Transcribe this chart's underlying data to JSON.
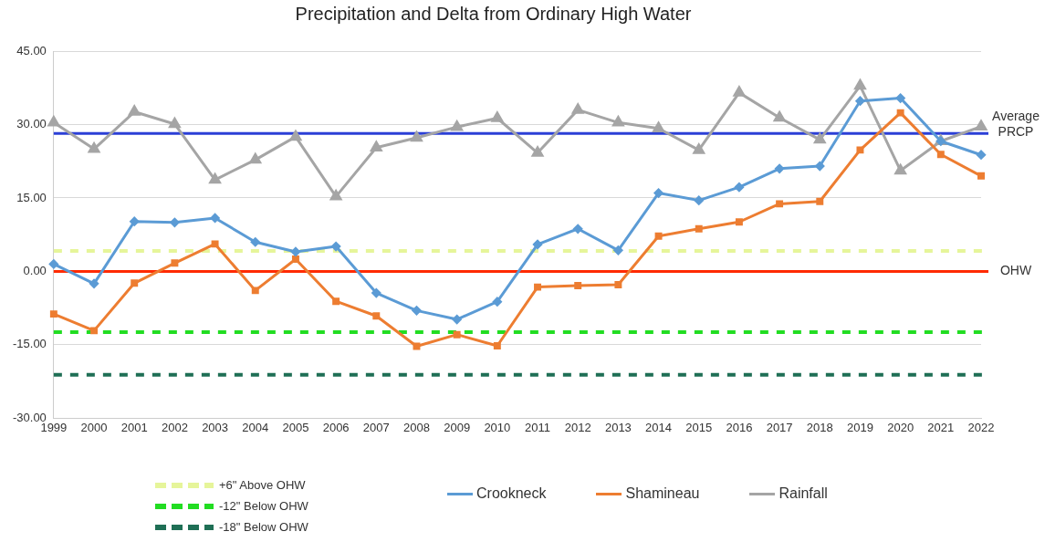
{
  "chart_data": {
    "type": "line",
    "title": "Precipitation and Delta from Ordinary High Water",
    "categories": [
      "1999",
      "2000",
      "2001",
      "2002",
      "2003",
      "2004",
      "2005",
      "2006",
      "2007",
      "2008",
      "2009",
      "2010",
      "2011",
      "2012",
      "2013",
      "2014",
      "2015",
      "2016",
      "2017",
      "2018",
      "2019",
      "2020",
      "2021",
      "2022"
    ],
    "series": [
      {
        "name": "Crookneck",
        "color": "#5b9bd5",
        "marker": "diamond",
        "values": [
          1.5,
          -2.5,
          10.2,
          10.0,
          10.9,
          6.0,
          4.0,
          5.1,
          -4.4,
          -8.0,
          -9.8,
          -6.2,
          5.5,
          8.7,
          4.3,
          16.0,
          14.5,
          17.2,
          21.0,
          21.5,
          34.8,
          35.4,
          26.6,
          23.8
        ]
      },
      {
        "name": "Shamineau",
        "color": "#ed7d31",
        "marker": "square",
        "values": [
          -8.7,
          -12.1,
          -2.4,
          1.7,
          5.6,
          -3.9,
          2.5,
          -6.1,
          -9.1,
          -15.3,
          -12.9,
          -15.2,
          -3.2,
          -2.9,
          -2.7,
          7.2,
          8.7,
          10.1,
          13.8,
          14.3,
          24.8,
          32.4,
          23.9,
          19.5
        ]
      },
      {
        "name": "Rainfall",
        "color": "#a5a5a5",
        "marker": "triangle",
        "values": [
          30.4,
          25.0,
          32.6,
          30.1,
          18.7,
          22.8,
          27.5,
          15.3,
          25.3,
          27.3,
          29.5,
          31.3,
          24.2,
          33.0,
          30.4,
          29.2,
          24.8,
          36.5,
          31.4,
          26.9,
          37.9,
          20.6,
          26.6,
          29.6
        ]
      }
    ],
    "ylim": [
      -30,
      45
    ],
    "yticks": [
      {
        "value": -30,
        "label": "-30.00"
      },
      {
        "value": -15,
        "label": "-15.00"
      },
      {
        "value": 0,
        "label": "0.00"
      },
      {
        "value": 15,
        "label": "15.00"
      },
      {
        "value": 30,
        "label": "30.00"
      },
      {
        "value": 45,
        "label": "45.00"
      }
    ],
    "ref_lines": [
      {
        "axis": "y",
        "value": 28.2,
        "label": "Average PRCP",
        "color": "#2b3fd6",
        "line_style": "solid"
      },
      {
        "axis": "y",
        "value": 0,
        "label": "OHW",
        "color": "#ff2a00",
        "line_style": "solid"
      },
      {
        "axis": "y",
        "value": 4.2,
        "label": "+6\" Above OHW",
        "color": "#e6f59a",
        "line_style": "dashed"
      },
      {
        "axis": "y",
        "value": -12.4,
        "label": "-12\" Below OHW",
        "color": "#22dd22",
        "line_style": "dashed"
      },
      {
        "axis": "y",
        "value": -21.1,
        "label": "-18\" Below OHW",
        "color": "#1f6f55",
        "line_style": "dashed"
      }
    ],
    "grid": "y",
    "legend": "bottom"
  }
}
